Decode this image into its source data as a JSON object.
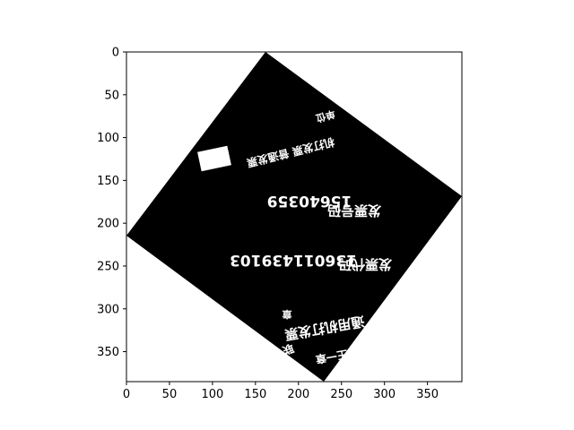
{
  "figure": {
    "x_ticks": [
      "0",
      "50",
      "100",
      "150",
      "200",
      "250",
      "300",
      "350"
    ],
    "y_ticks": [
      "0",
      "50",
      "100",
      "150",
      "200",
      "250",
      "300",
      "350"
    ],
    "frame_color": "#000000",
    "background_color": "#ffffff"
  },
  "image": {
    "card_color": "#000000",
    "overlay_color": "#ffffff",
    "text_lines": [
      "机打发票 普通发票",
      "15640359",
      "发票号码",
      "136011439103",
      "发票代码",
      "通用机打发票",
      "章",
      "联",
      "王一章",
      "单位"
    ]
  }
}
